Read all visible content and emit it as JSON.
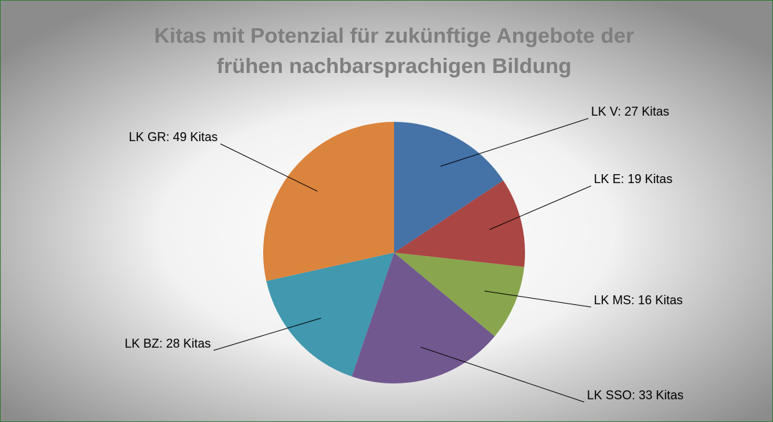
{
  "chart_data": {
    "type": "pie",
    "title": [
      "Kitas mit Potenzial für zukünftige Angebote der",
      "frühen nachbarsprachigen Bildung"
    ],
    "categories": [
      "LK V",
      "LK E",
      "LK MS",
      "LK SSO",
      "LK BZ",
      "LK GR"
    ],
    "values": [
      27,
      19,
      16,
      33,
      28,
      49
    ],
    "value_labels": [
      "LK V: 27 Kitas",
      "LK E: 19 Kitas",
      "LK MS: 16 Kitas",
      "LK SSO: 33 Kitas",
      "LK BZ: 28 Kitas",
      "LK GR: 49 Kitas"
    ],
    "colors": [
      "#4572a7",
      "#aa4643",
      "#89a54e",
      "#71588f",
      "#4198af",
      "#db843d"
    ]
  }
}
